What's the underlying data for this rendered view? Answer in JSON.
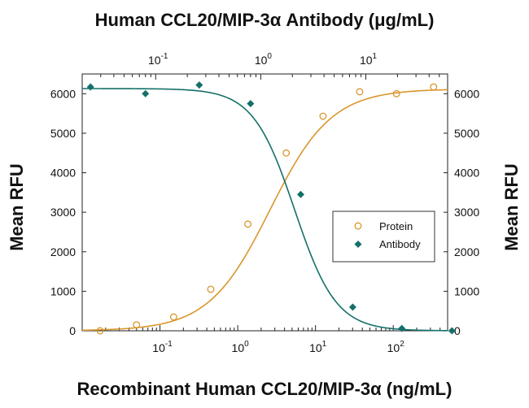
{
  "chart_data": {
    "type": "scatter",
    "title": "",
    "top_axis_label": "Human CCL20/MIP-3α Antibody (μg/mL)",
    "xlabel": "Recombinant Human CCL20/MIP-3α (ng/mL)",
    "ylabel": "Mean RFU",
    "ylabel_right": "Mean RFU",
    "x_scale": "log",
    "x_ticks": [
      {
        "value": 0.1,
        "base": "10",
        "exp": "-1"
      },
      {
        "value": 1,
        "base": "10",
        "exp": "0"
      },
      {
        "value": 10,
        "base": "10",
        "exp": "1"
      },
      {
        "value": 100,
        "base": "10",
        "exp": "2"
      }
    ],
    "top_x_ticks": [
      {
        "value": 0.1,
        "base": "10",
        "exp": "-1"
      },
      {
        "value": 1,
        "base": "10",
        "exp": "0"
      },
      {
        "value": 10,
        "base": "10",
        "exp": "1"
      }
    ],
    "xlim": [
      0.01,
      500
    ],
    "top_xlim": [
      0.02,
      60
    ],
    "ylim": [
      0,
      6500
    ],
    "y_ticks": [
      "0",
      "1000",
      "2000",
      "3000",
      "4000",
      "5000",
      "6000"
    ],
    "legend_position": "center-right",
    "series": [
      {
        "name": "Protein",
        "marker": "open-circle",
        "color": "#d9962b",
        "axis": "bottom",
        "points": [
          {
            "x": 0.017,
            "y": 0
          },
          {
            "x": 0.05,
            "y": 150
          },
          {
            "x": 0.15,
            "y": 350
          },
          {
            "x": 0.45,
            "y": 1050
          },
          {
            "x": 1.35,
            "y": 2700
          },
          {
            "x": 4.2,
            "y": 4500
          },
          {
            "x": 12.5,
            "y": 5430
          },
          {
            "x": 37,
            "y": 6050
          },
          {
            "x": 110,
            "y": 6000
          },
          {
            "x": 330,
            "y": 6170
          }
        ],
        "fit": {
          "bottom": 0,
          "top": 6120,
          "ec50": 2.6,
          "hill": 1.1
        }
      },
      {
        "name": "Antibody",
        "marker": "filled-diamond",
        "color": "#14706a",
        "axis": "top",
        "points": [
          {
            "x": 0.024,
            "y": 6170
          },
          {
            "x": 0.08,
            "y": 6000
          },
          {
            "x": 0.26,
            "y": 6220
          },
          {
            "x": 0.8,
            "y": 5750
          },
          {
            "x": 2.4,
            "y": 3450
          },
          {
            "x": 7.5,
            "y": 600
          },
          {
            "x": 22,
            "y": 60
          },
          {
            "x": 66,
            "y": 0
          }
        ],
        "fit": {
          "bottom": 0,
          "top": 6130,
          "ec50": 2.1,
          "hill": 2.2
        }
      }
    ]
  }
}
